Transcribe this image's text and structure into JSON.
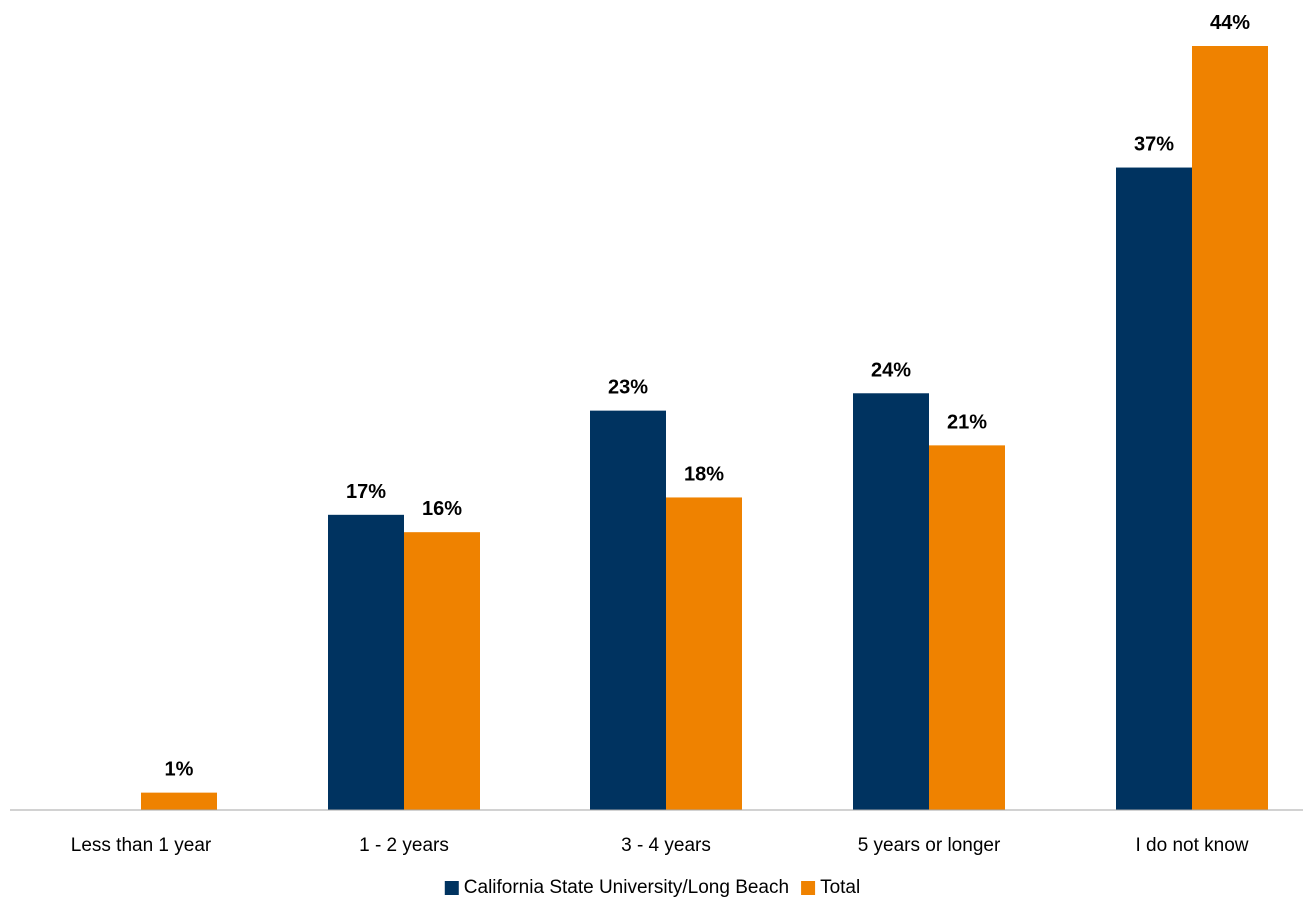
{
  "chart_data": {
    "type": "bar",
    "categories": [
      "Less than 1 year",
      "1 - 2 years",
      "3 - 4 years",
      "5 years or longer",
      "I do not know"
    ],
    "series": [
      {
        "name": "California State University/Long Beach",
        "color": "#003360",
        "values": [
          null,
          17,
          23,
          24,
          37
        ],
        "labels": [
          "",
          "17%",
          "23%",
          "24%",
          "37%"
        ]
      },
      {
        "name": "Total",
        "color": "#EF8200",
        "values": [
          1,
          16,
          18,
          21,
          44
        ],
        "labels": [
          "1%",
          "16%",
          "18%",
          "21%",
          "44%"
        ]
      }
    ],
    "ylim": [
      0,
      44
    ],
    "value_unit": "%",
    "grid": false,
    "legend_position": "bottom-center"
  }
}
